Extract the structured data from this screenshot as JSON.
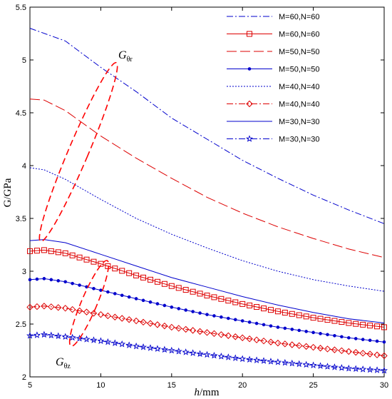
{
  "chart_data": {
    "type": "line",
    "xlabel_italic": "h",
    "xlabel_unit": "/mm",
    "ylabel": "G/GPa",
    "xlim": [
      5,
      30
    ],
    "ylim": [
      2,
      5.5
    ],
    "x_ticks": [
      5,
      10,
      15,
      20,
      25,
      30
    ],
    "y_ticks": [
      2,
      2.5,
      3,
      3.5,
      4,
      4.5,
      5,
      5.5
    ],
    "grid": false,
    "legend_position": "top-right",
    "series": [
      {
        "name": "M=60,N=60",
        "group": "G_θr",
        "color": "#0000cc",
        "dash": "9,3,2,3",
        "marker": "none",
        "x": [
          5,
          7.5,
          10,
          12.5,
          15,
          17.5,
          20,
          22.5,
          25,
          27.5,
          30
        ],
        "y": [
          5.3,
          5.18,
          4.93,
          4.7,
          4.45,
          4.25,
          4.05,
          3.88,
          3.72,
          3.58,
          3.45
        ]
      },
      {
        "name": "M=60,N=60",
        "group": "G_θz",
        "color": "#dd0000",
        "dash": "none",
        "marker": "square",
        "x": [
          5,
          6,
          7.5,
          10,
          12.5,
          15,
          17.5,
          20,
          22.5,
          25,
          27.5,
          30
        ],
        "y": [
          3.19,
          3.2,
          3.17,
          3.07,
          2.96,
          2.86,
          2.77,
          2.69,
          2.62,
          2.56,
          2.51,
          2.47
        ]
      },
      {
        "name": "M=50,N=50",
        "group": "G_θr",
        "color": "#dd0000",
        "dash": "14,5",
        "marker": "none",
        "x": [
          5,
          6,
          7.5,
          10,
          12.5,
          15,
          17.5,
          20,
          22.5,
          25,
          27.5,
          30
        ],
        "y": [
          4.63,
          4.62,
          4.52,
          4.28,
          4.07,
          3.88,
          3.7,
          3.55,
          3.42,
          3.31,
          3.21,
          3.13
        ]
      },
      {
        "name": "M=50,N=50",
        "group": "G_θz",
        "color": "#0000cc",
        "dash": "none",
        "marker": "dot",
        "x": [
          5,
          6,
          7.5,
          10,
          12.5,
          15,
          17.5,
          20,
          22.5,
          25,
          27.5,
          30
        ],
        "y": [
          2.92,
          2.93,
          2.9,
          2.82,
          2.74,
          2.66,
          2.59,
          2.53,
          2.47,
          2.42,
          2.37,
          2.33
        ]
      },
      {
        "name": "M=40,N=40",
        "group": "G_θr",
        "color": "#0000cc",
        "dash": "2,2",
        "marker": "none",
        "x": [
          5,
          6,
          7.5,
          10,
          12.5,
          15,
          17.5,
          20,
          22.5,
          25,
          27.5,
          30
        ],
        "y": [
          3.98,
          3.96,
          3.87,
          3.68,
          3.5,
          3.35,
          3.22,
          3.1,
          3.0,
          2.92,
          2.86,
          2.81
        ]
      },
      {
        "name": "M=40,N=40",
        "group": "G_θz",
        "color": "#dd0000",
        "dash": "9,3,2,3",
        "marker": "diamond",
        "x": [
          5,
          6,
          7.5,
          10,
          12.5,
          15,
          17.5,
          20,
          22.5,
          25,
          27.5,
          30
        ],
        "y": [
          2.66,
          2.67,
          2.65,
          2.59,
          2.53,
          2.47,
          2.42,
          2.37,
          2.32,
          2.28,
          2.24,
          2.2
        ]
      },
      {
        "name": "M=30,N=30",
        "group": "G_θr",
        "color": "#0000cc",
        "dash": "none",
        "marker": "none",
        "x": [
          5,
          6,
          7.5,
          10,
          12.5,
          15,
          17.5,
          20,
          22.5,
          25,
          27.5,
          30
        ],
        "y": [
          3.29,
          3.3,
          3.27,
          3.16,
          3.05,
          2.94,
          2.85,
          2.76,
          2.68,
          2.61,
          2.55,
          2.51
        ]
      },
      {
        "name": "M=30,N=30",
        "group": "G_θz",
        "color": "#0000cc",
        "dash": "9,3,2,3",
        "marker": "star",
        "x": [
          5,
          6,
          7.5,
          10,
          12.5,
          15,
          17.5,
          20,
          22.5,
          25,
          27.5,
          30
        ],
        "y": [
          2.39,
          2.4,
          2.38,
          2.34,
          2.29,
          2.25,
          2.21,
          2.17,
          2.14,
          2.11,
          2.08,
          2.06
        ]
      }
    ],
    "annotations": [
      {
        "id": "g-theta-r",
        "main": "G",
        "sub": "θr"
      },
      {
        "id": "g-theta-z",
        "main": "G",
        "sub": "θz"
      }
    ]
  }
}
